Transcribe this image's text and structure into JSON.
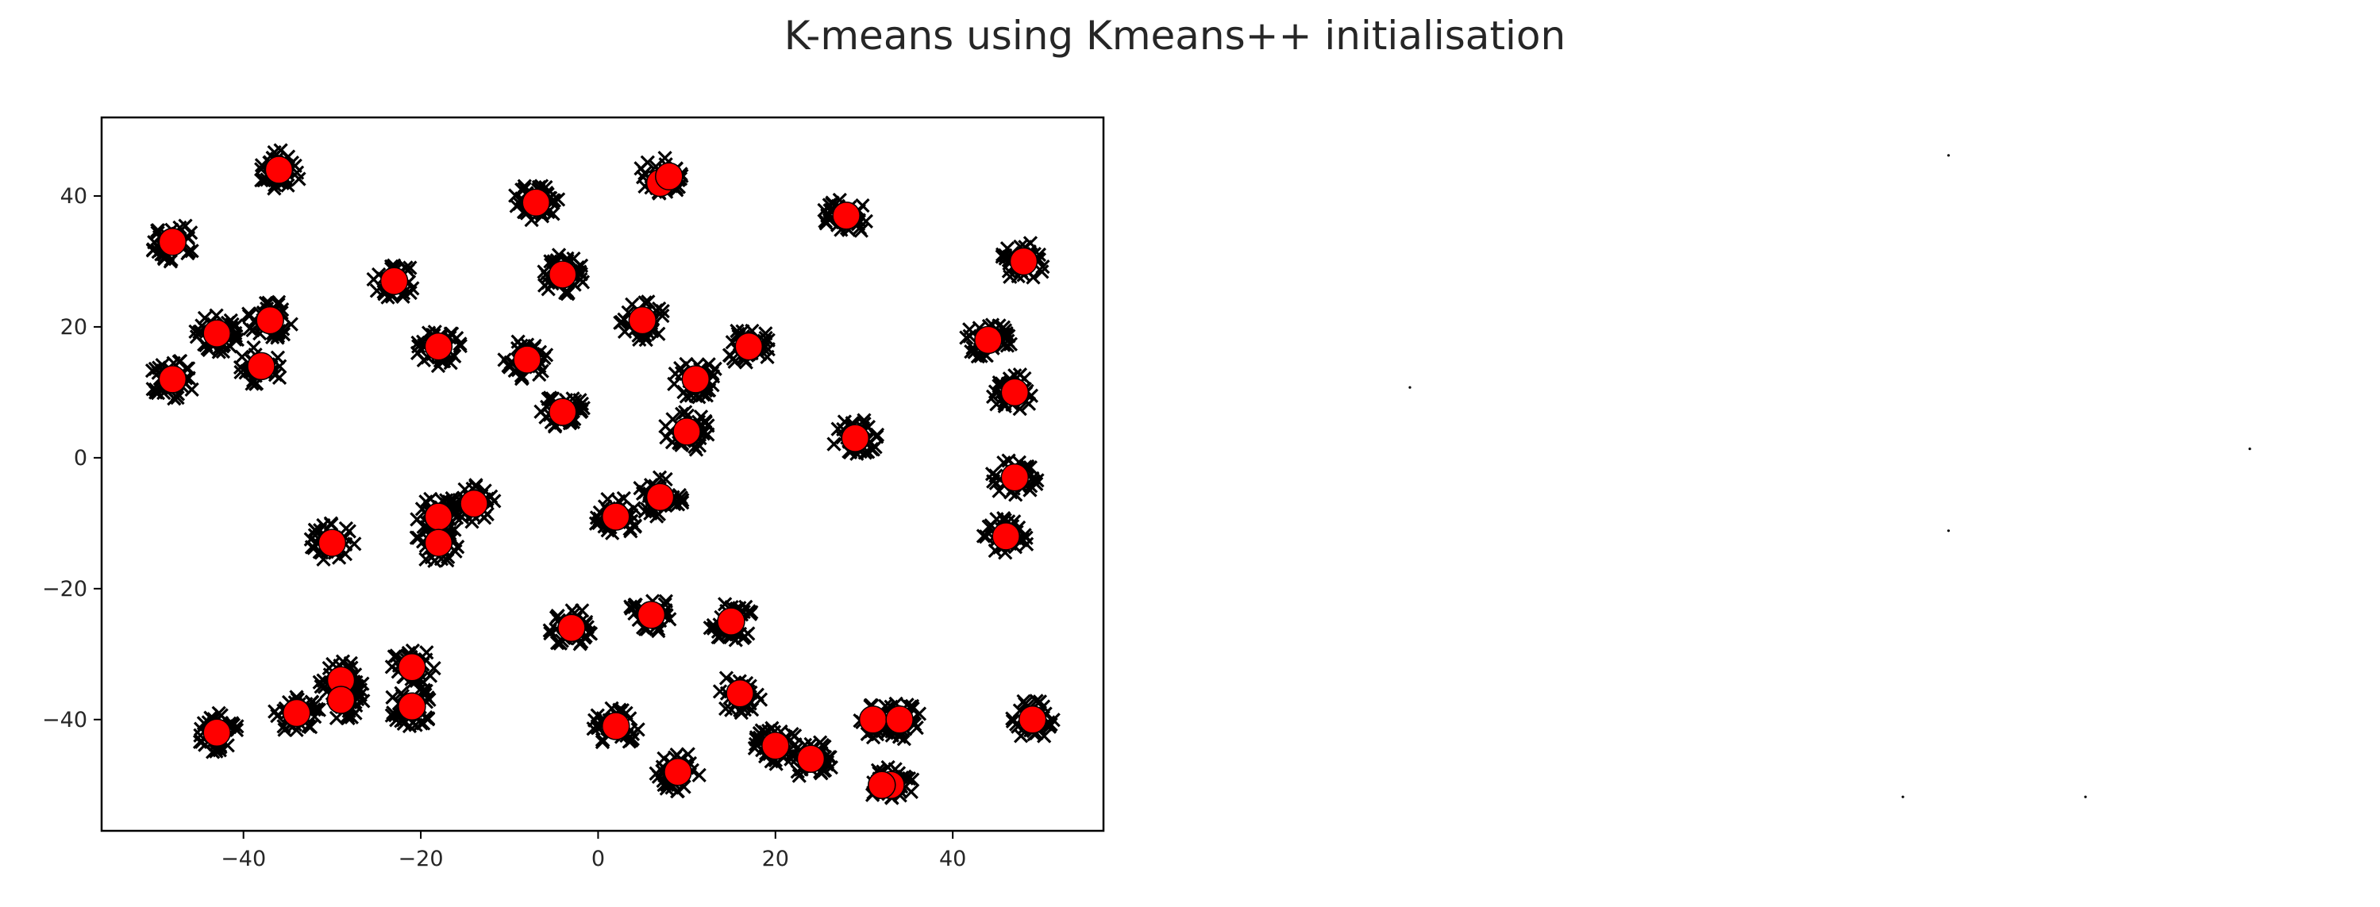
{
  "figure": {
    "suptitle": "K-means using Kmeans++ initialisation"
  },
  "chart_data": [
    {
      "type": "scatter",
      "title": "",
      "xlabel": "",
      "ylabel": "",
      "xlim": [
        -56,
        57
      ],
      "ylim": [
        -57,
        52
      ],
      "xticks": [
        -40,
        -20,
        0,
        20,
        40
      ],
      "yticks": [
        -40,
        -20,
        0,
        20,
        40
      ],
      "xtick_labels": [
        "−40",
        "−20",
        "0",
        "20",
        "40"
      ],
      "ytick_labels": [
        "−40",
        "−20",
        "0",
        "20",
        "40"
      ],
      "grid": false,
      "legend": "none",
      "series": [
        {
          "role": "data-points",
          "marker": "x",
          "color": "#000000",
          "clusters": [
            {
              "x": -48,
              "y": 33
            },
            {
              "x": -48,
              "y": 12
            },
            {
              "x": -43,
              "y": 19
            },
            {
              "x": -36,
              "y": 44
            },
            {
              "x": -37,
              "y": 21
            },
            {
              "x": -38,
              "y": 14
            },
            {
              "x": -23,
              "y": 27
            },
            {
              "x": -18,
              "y": 17
            },
            {
              "x": -7,
              "y": 39
            },
            {
              "x": -4,
              "y": 28
            },
            {
              "x": -8,
              "y": 15
            },
            {
              "x": -4,
              "y": 7
            },
            {
              "x": 7,
              "y": 43
            },
            {
              "x": 5,
              "y": 21
            },
            {
              "x": 11,
              "y": 12
            },
            {
              "x": 17,
              "y": 17
            },
            {
              "x": 10,
              "y": 4
            },
            {
              "x": 28,
              "y": 37
            },
            {
              "x": 29,
              "y": 3
            },
            {
              "x": 48,
              "y": 30
            },
            {
              "x": 44,
              "y": 18
            },
            {
              "x": 47,
              "y": 10
            },
            {
              "x": 47,
              "y": -3
            },
            {
              "x": 46,
              "y": -12
            },
            {
              "x": -30,
              "y": -13
            },
            {
              "x": -18,
              "y": -9
            },
            {
              "x": -18,
              "y": -13
            },
            {
              "x": -14,
              "y": -7
            },
            {
              "x": 2,
              "y": -9
            },
            {
              "x": 7,
              "y": -6
            },
            {
              "x": -3,
              "y": -26
            },
            {
              "x": 6,
              "y": -24
            },
            {
              "x": 15,
              "y": -25
            },
            {
              "x": -43,
              "y": -42
            },
            {
              "x": -34,
              "y": -39
            },
            {
              "x": -29,
              "y": -34
            },
            {
              "x": -29,
              "y": -37
            },
            {
              "x": -21,
              "y": -32
            },
            {
              "x": -21,
              "y": -38
            },
            {
              "x": 2,
              "y": -41
            },
            {
              "x": 16,
              "y": -36
            },
            {
              "x": 9,
              "y": -48
            },
            {
              "x": 20,
              "y": -44
            },
            {
              "x": 24,
              "y": -46
            },
            {
              "x": 32,
              "y": -40
            },
            {
              "x": 34,
              "y": -40
            },
            {
              "x": 33,
              "y": -50
            },
            {
              "x": 49,
              "y": -40
            }
          ]
        },
        {
          "role": "centroids",
          "marker": "o",
          "color": "#ff0000",
          "edgecolor": "#000000",
          "points": [
            {
              "x": -48,
              "y": 33
            },
            {
              "x": -48,
              "y": 12
            },
            {
              "x": -43,
              "y": 19
            },
            {
              "x": -36,
              "y": 44
            },
            {
              "x": -37,
              "y": 21
            },
            {
              "x": -38,
              "y": 14
            },
            {
              "x": -23,
              "y": 27
            },
            {
              "x": -18,
              "y": 17
            },
            {
              "x": -7,
              "y": 39
            },
            {
              "x": -4,
              "y": 28
            },
            {
              "x": -8,
              "y": 15
            },
            {
              "x": -4,
              "y": 7
            },
            {
              "x": 7,
              "y": 42
            },
            {
              "x": 8,
              "y": 43
            },
            {
              "x": 5,
              "y": 21
            },
            {
              "x": 11,
              "y": 12
            },
            {
              "x": 17,
              "y": 17
            },
            {
              "x": 10,
              "y": 4
            },
            {
              "x": 28,
              "y": 37
            },
            {
              "x": 29,
              "y": 3
            },
            {
              "x": 48,
              "y": 30
            },
            {
              "x": 44,
              "y": 18
            },
            {
              "x": 47,
              "y": 10
            },
            {
              "x": 47,
              "y": -3
            },
            {
              "x": 46,
              "y": -12
            },
            {
              "x": -30,
              "y": -13
            },
            {
              "x": -18,
              "y": -9
            },
            {
              "x": -18,
              "y": -13
            },
            {
              "x": -14,
              "y": -7
            },
            {
              "x": 2,
              "y": -9
            },
            {
              "x": 7,
              "y": -6
            },
            {
              "x": -3,
              "y": -26
            },
            {
              "x": 6,
              "y": -24
            },
            {
              "x": 15,
              "y": -25
            },
            {
              "x": -43,
              "y": -42
            },
            {
              "x": -34,
              "y": -39
            },
            {
              "x": -29,
              "y": -34
            },
            {
              "x": -29,
              "y": -37
            },
            {
              "x": -21,
              "y": -32
            },
            {
              "x": -21,
              "y": -38
            },
            {
              "x": 2,
              "y": -41
            },
            {
              "x": 16,
              "y": -36
            },
            {
              "x": 9,
              "y": -48
            },
            {
              "x": 20,
              "y": -44
            },
            {
              "x": 24,
              "y": -46
            },
            {
              "x": 31,
              "y": -40
            },
            {
              "x": 34,
              "y": -40
            },
            {
              "x": 33,
              "y": -50
            },
            {
              "x": 32,
              "y": -50
            },
            {
              "x": 49,
              "y": -40
            }
          ]
        }
      ]
    },
    {
      "type": "scatter",
      "title": "",
      "xlabel": "",
      "ylabel": "",
      "axes_visible": false,
      "grid": false,
      "legend": "none",
      "xlim": [
        0,
        1
      ],
      "ylim": [
        0,
        1
      ],
      "series": [
        {
          "role": "sparse-points",
          "color": "#000000",
          "points": [
            {
              "x": 0.63,
              "y": 0.97
            },
            {
              "x": 0.04,
              "y": 0.63
            },
            {
              "x": 0.96,
              "y": 0.54
            },
            {
              "x": 0.63,
              "y": 0.42
            },
            {
              "x": 0.58,
              "y": 0.03
            },
            {
              "x": 0.78,
              "y": 0.03
            }
          ]
        }
      ]
    }
  ]
}
